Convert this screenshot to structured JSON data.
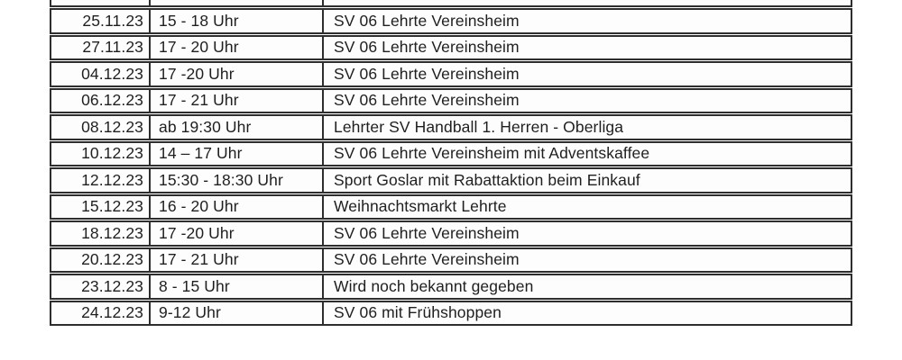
{
  "document": {
    "type": "scanned-schedule-table",
    "language": "de"
  },
  "colors": {
    "background": "#ffffff",
    "cell_background": "#fdfdfd",
    "border": "#2e2e2e",
    "text": "#1f1f1f"
  },
  "table": {
    "columns": [
      "date",
      "time",
      "location"
    ],
    "rows": [
      {
        "date": "25.11.23",
        "time": "15 - 18 Uhr",
        "location": "SV 06 Lehrte Vereinsheim"
      },
      {
        "date": "27.11.23",
        "time": "17 - 20 Uhr",
        "location": "SV 06 Lehrte Vereinsheim"
      },
      {
        "date": "04.12.23",
        "time": "17 -20 Uhr",
        "location": "SV 06 Lehrte Vereinsheim"
      },
      {
        "date": "06.12.23",
        "time": "17 - 21 Uhr",
        "location": "SV 06 Lehrte Vereinsheim"
      },
      {
        "date": "08.12.23",
        "time": "ab 19:30 Uhr",
        "location": "Lehrter SV Handball 1. Herren - Oberliga"
      },
      {
        "date": "10.12.23",
        "time": "14 – 17 Uhr",
        "location": "SV 06 Lehrte Vereinsheim mit Adventskaffee"
      },
      {
        "date": "12.12.23",
        "time": "15:30 - 18:30 Uhr",
        "location": "Sport Goslar mit Rabattaktion beim Einkauf"
      },
      {
        "date": "15.12.23",
        "time": "16 - 20 Uhr",
        "location": "Weihnachtsmarkt Lehrte"
      },
      {
        "date": "18.12.23",
        "time": "17 -20 Uhr",
        "location": "SV 06 Lehrte Vereinsheim"
      },
      {
        "date": "20.12.23",
        "time": "17 - 21 Uhr",
        "location": "SV 06 Lehrte Vereinsheim"
      },
      {
        "date": "23.12.23",
        "time": "8 - 15 Uhr",
        "location": "Wird noch bekannt gegeben"
      },
      {
        "date": "24.12.23",
        "time": "9-12 Uhr",
        "location": "SV 06 mit Frühshoppen"
      }
    ]
  }
}
